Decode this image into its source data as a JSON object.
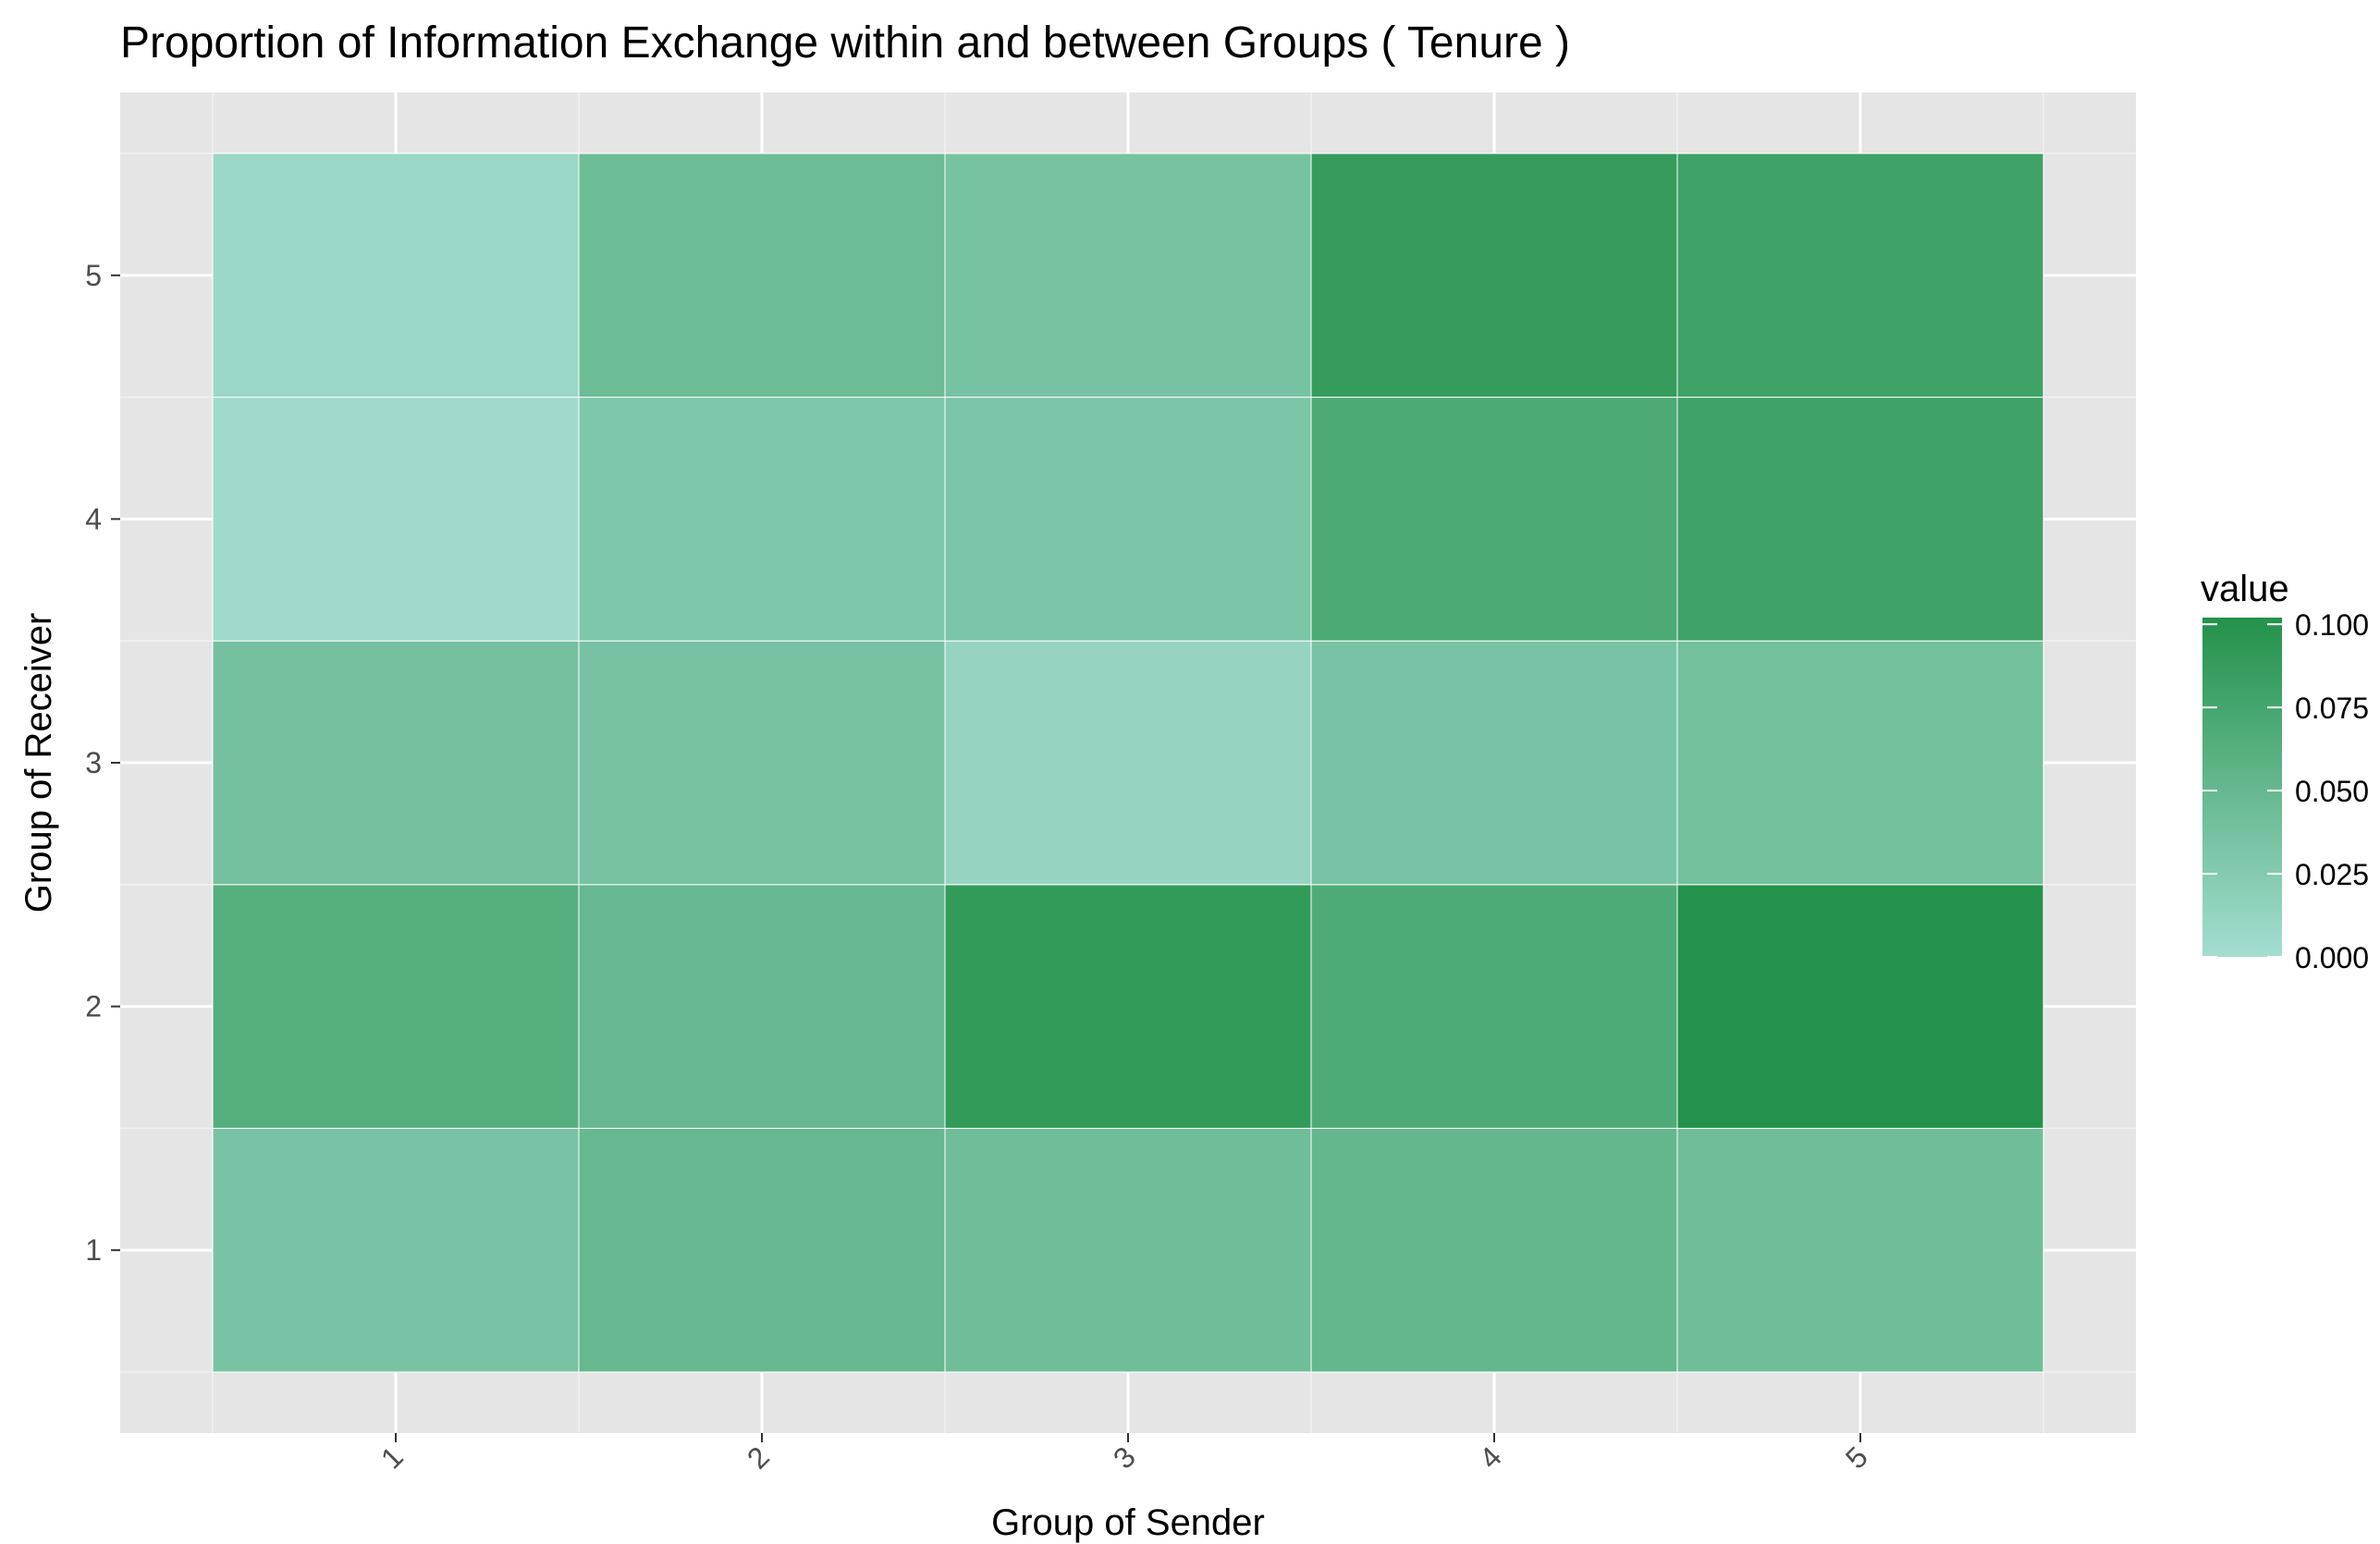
{
  "chart_data": {
    "type": "heatmap",
    "title": "Proportion of  Information Exchange within and between Groups ( Tenure )",
    "xlabel": "Group of Sender",
    "ylabel": "Group of Receiver",
    "x_categories": [
      "1",
      "2",
      "3",
      "4",
      "5"
    ],
    "y_categories": [
      "1",
      "2",
      "3",
      "4",
      "5"
    ],
    "cells": [
      {
        "x": "1",
        "y": "1",
        "value": 0.035
      },
      {
        "x": "2",
        "y": "1",
        "value": 0.05
      },
      {
        "x": "3",
        "y": "1",
        "value": 0.042
      },
      {
        "x": "4",
        "y": "1",
        "value": 0.052
      },
      {
        "x": "5",
        "y": "1",
        "value": 0.042
      },
      {
        "x": "1",
        "y": "2",
        "value": 0.062
      },
      {
        "x": "2",
        "y": "2",
        "value": 0.05
      },
      {
        "x": "3",
        "y": "2",
        "value": 0.09
      },
      {
        "x": "4",
        "y": "2",
        "value": 0.068
      },
      {
        "x": "5",
        "y": "2",
        "value": 0.102
      },
      {
        "x": "1",
        "y": "3",
        "value": 0.038
      },
      {
        "x": "2",
        "y": "3",
        "value": 0.036
      },
      {
        "x": "3",
        "y": "3",
        "value": 0.012
      },
      {
        "x": "4",
        "y": "3",
        "value": 0.035
      },
      {
        "x": "5",
        "y": "3",
        "value": 0.04
      },
      {
        "x": "1",
        "y": "4",
        "value": 0.004
      },
      {
        "x": "2",
        "y": "4",
        "value": 0.03
      },
      {
        "x": "3",
        "y": "4",
        "value": 0.032
      },
      {
        "x": "4",
        "y": "4",
        "value": 0.07
      },
      {
        "x": "5",
        "y": "4",
        "value": 0.08
      },
      {
        "x": "1",
        "y": "5",
        "value": 0.008
      },
      {
        "x": "2",
        "y": "5",
        "value": 0.045
      },
      {
        "x": "3",
        "y": "5",
        "value": 0.036
      },
      {
        "x": "4",
        "y": "5",
        "value": 0.088
      },
      {
        "x": "5",
        "y": "5",
        "value": 0.08
      }
    ],
    "color_scale": {
      "low": "#a5ddd1",
      "high": "#23924a",
      "min": 0.0,
      "max": 0.102
    },
    "legend": {
      "title": "value",
      "breaks": [
        "0.000",
        "0.025",
        "0.050",
        "0.075",
        "0.100"
      ],
      "break_values": [
        0.0,
        0.025,
        0.05,
        0.075,
        0.1
      ],
      "position": "right"
    },
    "grid": true,
    "panel_background": "#e5e5e5"
  }
}
